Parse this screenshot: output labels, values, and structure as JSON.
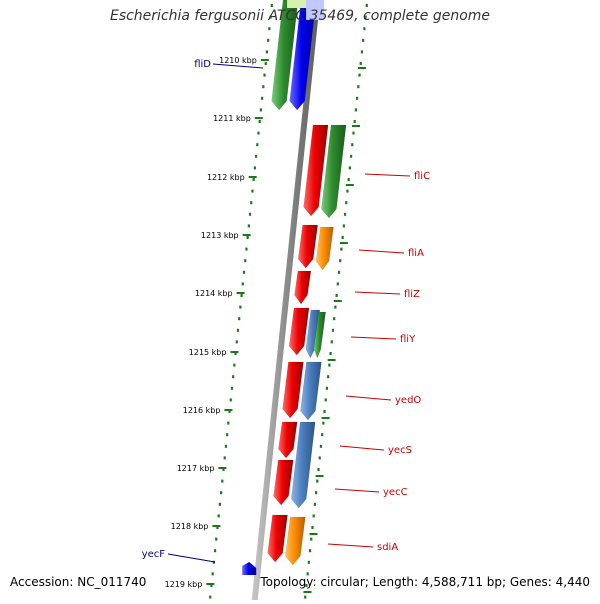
{
  "map": {
    "title": "Escherichia fergusonii ATCC 35469, complete genome",
    "accession": "Accession: NC_011740",
    "summary": "Topology: circular; Length: 4,588,711 bp; Genes: 4,440"
  },
  "ruler": {
    "ticks": [
      "1210 kbp",
      "1211 kbp",
      "1212 kbp",
      "1213 kbp",
      "1214 kbp",
      "1215 kbp",
      "1216 kbp",
      "1217 kbp",
      "1218 kbp",
      "1219 kbp"
    ]
  },
  "genes": [
    {
      "name": "fliD",
      "color": "#000080"
    },
    {
      "name": "fliC",
      "color": "#cc0000"
    },
    {
      "name": "fliA",
      "color": "#cc0000"
    },
    {
      "name": "fliZ",
      "color": "#cc0000"
    },
    {
      "name": "fliY",
      "color": "#cc0000"
    },
    {
      "name": "yedO",
      "color": "#cc0000"
    },
    {
      "name": "yecS",
      "color": "#cc0000"
    },
    {
      "name": "yecC",
      "color": "#cc0000"
    },
    {
      "name": "sdiA",
      "color": "#cc0000"
    },
    {
      "name": "yecF",
      "color": "#000080"
    }
  ],
  "colors": {
    "backbone": "#8c8c8c",
    "red": "#ee0000",
    "green": "#2e8b2e",
    "blue": "#0000ee",
    "orange": "#ff8c00",
    "steelblue": "#4a7fc0",
    "tick": "#1a7a1a"
  }
}
